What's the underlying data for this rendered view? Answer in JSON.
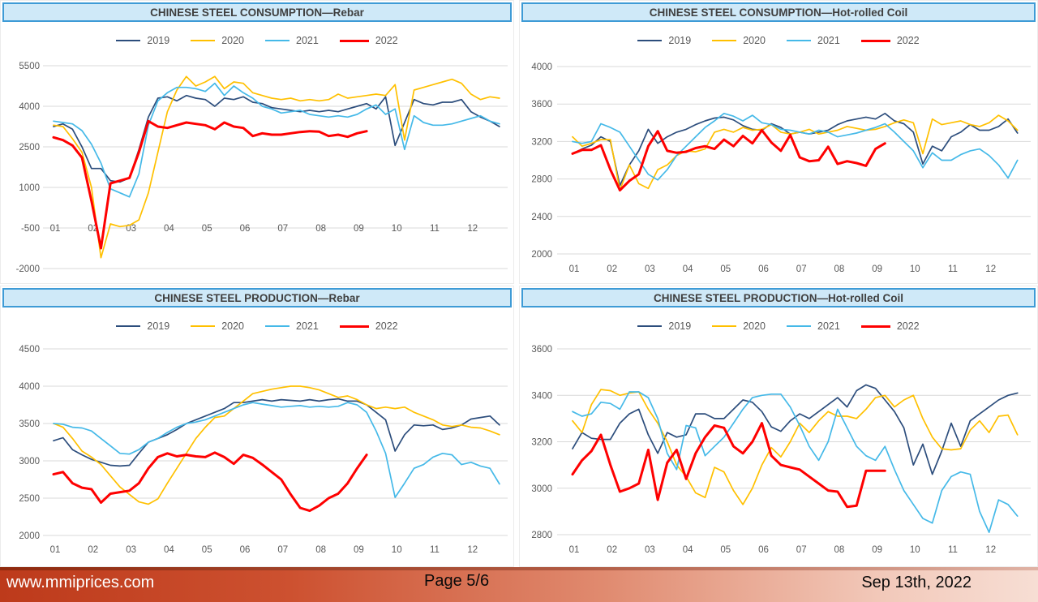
{
  "footer": {
    "website": "www.mmiprices.com",
    "page_label": "Page 5/6",
    "date": "Sep 13th, 2022"
  },
  "colors": {
    "series_2019": "#2c4d7c",
    "series_2020": "#ffc000",
    "series_2021": "#45b9e8",
    "series_2022": "#fe0000",
    "grid": "#d9d9d9",
    "axis_text": "#595959",
    "title_text": "#3f3f3f",
    "title_bar_bg": "#cfe9f8",
    "title_bar_border": "#3e9bd6",
    "footer_gradient_left": "#bd3a1b",
    "footer_gradient_right": "#f7ded4"
  },
  "chart_data": [
    {
      "type": "line",
      "title": "CHINESE STEEL CONSUMPTION—Rebar",
      "x_labels": [
        "01",
        "02",
        "03",
        "04",
        "05",
        "06",
        "07",
        "08",
        "09",
        "10",
        "11",
        "12"
      ],
      "x_start_month": 1,
      "x_points_per_month": 4,
      "ylim": [
        -2000,
        5500
      ],
      "y_ticks": [
        5500,
        4000,
        2500,
        1000,
        -500,
        -2000
      ],
      "grid": true,
      "legend_position": "top",
      "series": [
        {
          "name": "2019",
          "color": "#2c4d7c",
          "values": [
            3250,
            3350,
            3150,
            2500,
            1700,
            1700,
            1250,
            1200,
            1350,
            2400,
            3600,
            4300,
            4350,
            4200,
            4400,
            4300,
            4250,
            4000,
            4300,
            4250,
            4350,
            4150,
            4100,
            3950,
            3900,
            3850,
            3800,
            3850,
            3800,
            3850,
            3800,
            3900,
            4000,
            4100,
            3900,
            4350,
            2550,
            3400,
            4250,
            4100,
            4050,
            4150,
            4150,
            4250,
            3800,
            3600,
            3450,
            3250
          ]
        },
        {
          "name": "2020",
          "color": "#ffc000",
          "values": [
            3300,
            3250,
            2800,
            2300,
            1000,
            -1600,
            -350,
            -450,
            -400,
            -200,
            800,
            2300,
            3800,
            4600,
            5100,
            4750,
            4900,
            5100,
            4650,
            4900,
            4850,
            4500,
            4400,
            4300,
            4250,
            4300,
            4200,
            4250,
            4200,
            4250,
            4450,
            4300,
            4350,
            4400,
            4450,
            4400,
            4800,
            2750,
            4600,
            4700,
            4800,
            4900,
            5000,
            4850,
            4450,
            4250,
            4350,
            4300
          ]
        },
        {
          "name": "2021",
          "color": "#45b9e8",
          "values": [
            3450,
            3400,
            3350,
            3100,
            2600,
            1900,
            950,
            800,
            650,
            1500,
            3300,
            4200,
            4500,
            4700,
            4700,
            4650,
            4550,
            4850,
            4400,
            4750,
            4500,
            4300,
            4000,
            3900,
            3750,
            3800,
            3850,
            3700,
            3650,
            3600,
            3650,
            3600,
            3700,
            3900,
            4050,
            3700,
            3900,
            2400,
            3650,
            3400,
            3300,
            3300,
            3350,
            3450,
            3550,
            3650,
            3450,
            3350
          ]
        },
        {
          "name": "2022",
          "color": "#fe0000",
          "values": [
            2850,
            2750,
            2550,
            2100,
            500,
            -1250,
            1150,
            1250,
            1350,
            2300,
            3450,
            3250,
            3200,
            3300,
            3400,
            3350,
            3300,
            3150,
            3400,
            3250,
            3200,
            2900,
            3000,
            2950,
            2950,
            3000,
            3050,
            3080,
            3060,
            2900,
            2950,
            2870,
            3000,
            3080
          ]
        }
      ]
    },
    {
      "type": "line",
      "title": "CHINESE STEEL CONSUMPTION—Hot-rolled Coil",
      "x_labels": [
        "01",
        "02",
        "03",
        "04",
        "05",
        "06",
        "07",
        "08",
        "09",
        "10",
        "11",
        "12"
      ],
      "x_start_month": 1,
      "x_points_per_month": 4,
      "ylim": [
        2000,
        4000
      ],
      "y_ticks": [
        4000,
        3600,
        3200,
        2800,
        2400,
        2000
      ],
      "grid": true,
      "legend_position": "top",
      "series": [
        {
          "name": "2019",
          "color": "#2c4d7c",
          "values": [
            3070,
            3120,
            3160,
            3250,
            3200,
            2730,
            2950,
            3100,
            3330,
            3180,
            3250,
            3300,
            3330,
            3380,
            3420,
            3450,
            3460,
            3430,
            3370,
            3330,
            3320,
            3390,
            3350,
            3280,
            3300,
            3280,
            3300,
            3320,
            3380,
            3420,
            3440,
            3460,
            3440,
            3500,
            3420,
            3390,
            3300,
            2960,
            3150,
            3100,
            3250,
            3300,
            3380,
            3320,
            3320,
            3360,
            3440,
            3290
          ]
        },
        {
          "name": "2020",
          "color": "#ffc000",
          "values": [
            3250,
            3150,
            3180,
            3220,
            3220,
            2680,
            2950,
            2750,
            2700,
            2900,
            2950,
            3050,
            3100,
            3090,
            3120,
            3300,
            3330,
            3300,
            3350,
            3320,
            3330,
            3380,
            3300,
            3280,
            3300,
            3330,
            3280,
            3300,
            3320,
            3360,
            3340,
            3320,
            3330,
            3360,
            3400,
            3430,
            3400,
            3070,
            3440,
            3380,
            3400,
            3420,
            3380,
            3360,
            3400,
            3480,
            3420,
            3320
          ]
        },
        {
          "name": "2021",
          "color": "#45b9e8",
          "values": [
            3200,
            3180,
            3200,
            3390,
            3350,
            3300,
            3150,
            3000,
            2850,
            2790,
            2900,
            3050,
            3150,
            3250,
            3350,
            3420,
            3500,
            3470,
            3420,
            3480,
            3400,
            3380,
            3330,
            3320,
            3300,
            3280,
            3320,
            3300,
            3250,
            3270,
            3290,
            3320,
            3350,
            3390,
            3300,
            3200,
            3100,
            2920,
            3080,
            3000,
            3000,
            3060,
            3100,
            3120,
            3050,
            2950,
            2810,
            3000
          ]
        },
        {
          "name": "2022",
          "color": "#fe0000",
          "values": [
            3070,
            3110,
            3110,
            3160,
            2900,
            2680,
            2780,
            2850,
            3150,
            3310,
            3100,
            3080,
            3090,
            3130,
            3150,
            3120,
            3220,
            3150,
            3260,
            3180,
            3320,
            3190,
            3100,
            3270,
            3030,
            2990,
            3000,
            3145,
            2960,
            2990,
            2970,
            2940,
            3120,
            3180
          ]
        }
      ]
    },
    {
      "type": "line",
      "title": "CHINESE STEEL PRODUCTION—Rebar",
      "x_labels": [
        "01",
        "02",
        "03",
        "04",
        "05",
        "06",
        "07",
        "08",
        "09",
        "10",
        "11",
        "12"
      ],
      "x_start_month": 1,
      "x_points_per_month": 4,
      "ylim": [
        2000,
        4500
      ],
      "y_ticks": [
        4500,
        4000,
        3500,
        3000,
        2500,
        2000
      ],
      "grid": true,
      "legend_position": "top",
      "series": [
        {
          "name": "2019",
          "color": "#2c4d7c",
          "values": [
            3270,
            3310,
            3150,
            3080,
            3020,
            2980,
            2940,
            2930,
            2940,
            3100,
            3250,
            3300,
            3350,
            3420,
            3500,
            3550,
            3600,
            3650,
            3700,
            3780,
            3780,
            3800,
            3820,
            3800,
            3820,
            3810,
            3800,
            3820,
            3800,
            3820,
            3830,
            3800,
            3800,
            3750,
            3650,
            3550,
            3130,
            3350,
            3480,
            3470,
            3480,
            3420,
            3440,
            3480,
            3560,
            3580,
            3600,
            3480
          ]
        },
        {
          "name": "2020",
          "color": "#ffc000",
          "values": [
            3500,
            3450,
            3300,
            3130,
            3050,
            2950,
            2800,
            2650,
            2550,
            2450,
            2420,
            2490,
            2700,
            2900,
            3100,
            3300,
            3450,
            3580,
            3600,
            3700,
            3800,
            3900,
            3930,
            3960,
            3980,
            4000,
            4000,
            3980,
            3950,
            3900,
            3850,
            3870,
            3820,
            3750,
            3700,
            3720,
            3700,
            3720,
            3650,
            3600,
            3550,
            3480,
            3460,
            3480,
            3450,
            3440,
            3400,
            3350
          ]
        },
        {
          "name": "2021",
          "color": "#45b9e8",
          "values": [
            3500,
            3490,
            3450,
            3440,
            3400,
            3300,
            3200,
            3100,
            3090,
            3150,
            3250,
            3300,
            3380,
            3450,
            3500,
            3520,
            3550,
            3600,
            3650,
            3700,
            3750,
            3780,
            3760,
            3740,
            3720,
            3730,
            3740,
            3720,
            3730,
            3720,
            3730,
            3780,
            3750,
            3650,
            3400,
            3100,
            2510,
            2700,
            2900,
            2950,
            3050,
            3100,
            3080,
            2950,
            2980,
            2930,
            2900,
            2690
          ]
        },
        {
          "name": "2022",
          "color": "#fe0000",
          "values": [
            2820,
            2850,
            2700,
            2640,
            2620,
            2440,
            2560,
            2580,
            2600,
            2700,
            2900,
            3050,
            3100,
            3060,
            3080,
            3060,
            3050,
            3110,
            3050,
            2960,
            3080,
            3040,
            2950,
            2850,
            2750,
            2550,
            2370,
            2330,
            2400,
            2500,
            2560,
            2700,
            2900,
            3080
          ]
        }
      ]
    },
    {
      "type": "line",
      "title": "CHINESE STEEL PRODUCTION—Hot-rolled Coil",
      "x_labels": [
        "01",
        "02",
        "03",
        "04",
        "05",
        "06",
        "07",
        "08",
        "09",
        "10",
        "11",
        "12"
      ],
      "x_start_month": 1,
      "x_points_per_month": 4,
      "ylim": [
        2800,
        3600
      ],
      "y_ticks": [
        3600,
        3400,
        3200,
        3000,
        2800
      ],
      "grid": true,
      "legend_position": "top",
      "series": [
        {
          "name": "2019",
          "color": "#2c4d7c",
          "values": [
            3170,
            3240,
            3215,
            3210,
            3210,
            3280,
            3320,
            3340,
            3230,
            3150,
            3240,
            3220,
            3230,
            3320,
            3320,
            3300,
            3300,
            3340,
            3380,
            3370,
            3330,
            3264,
            3245,
            3290,
            3320,
            3300,
            3330,
            3360,
            3390,
            3350,
            3420,
            3445,
            3430,
            3380,
            3330,
            3260,
            3100,
            3190,
            3060,
            3160,
            3280,
            3180,
            3290,
            3320,
            3350,
            3380,
            3400,
            3410
          ]
        },
        {
          "name": "2020",
          "color": "#ffc000",
          "values": [
            3290,
            3240,
            3360,
            3425,
            3420,
            3400,
            3410,
            3415,
            3340,
            3280,
            3200,
            3100,
            3050,
            2980,
            2960,
            3090,
            3070,
            2990,
            2930,
            3000,
            3100,
            3175,
            3135,
            3200,
            3280,
            3240,
            3290,
            3330,
            3310,
            3310,
            3300,
            3340,
            3390,
            3400,
            3350,
            3380,
            3400,
            3300,
            3220,
            3170,
            3165,
            3170,
            3250,
            3290,
            3240,
            3310,
            3315,
            3230
          ]
        },
        {
          "name": "2021",
          "color": "#45b9e8",
          "values": [
            3330,
            3310,
            3320,
            3370,
            3365,
            3340,
            3415,
            3415,
            3390,
            3300,
            3150,
            3080,
            3270,
            3260,
            3140,
            3180,
            3220,
            3280,
            3340,
            3390,
            3400,
            3405,
            3405,
            3350,
            3270,
            3180,
            3120,
            3200,
            3340,
            3260,
            3180,
            3140,
            3120,
            3180,
            3080,
            2990,
            2930,
            2870,
            2850,
            2990,
            3050,
            3070,
            3060,
            2900,
            2810,
            2950,
            2930,
            2880
          ]
        },
        {
          "name": "2022",
          "color": "#fe0000",
          "values": [
            3060,
            3120,
            3160,
            3230,
            3100,
            2985,
            3000,
            3020,
            3165,
            2950,
            3110,
            3165,
            3040,
            3150,
            3220,
            3270,
            3260,
            3180,
            3150,
            3200,
            3280,
            3140,
            3100,
            3090,
            3080,
            3050,
            3020,
            2990,
            2985,
            2920,
            2925,
            3075,
            3075,
            3075
          ]
        }
      ]
    }
  ]
}
